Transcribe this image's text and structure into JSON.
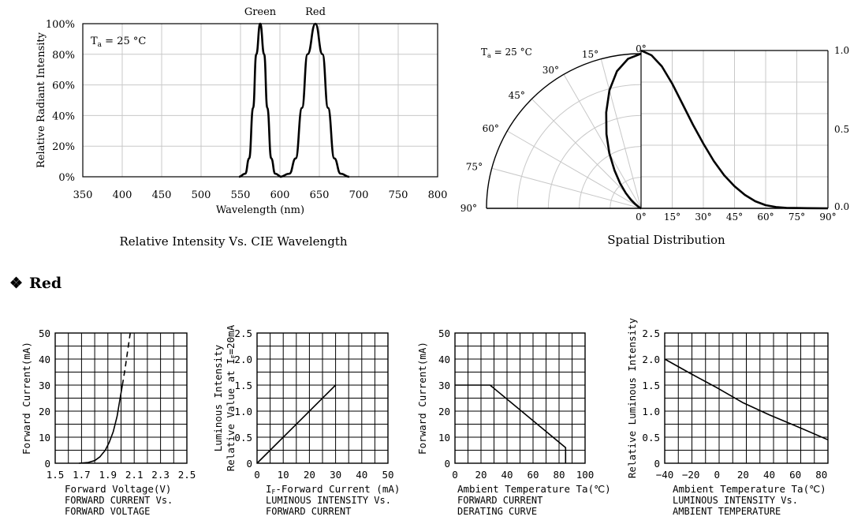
{
  "section": {
    "bullet": "❖",
    "title": "Red"
  },
  "chart_data": [
    {
      "id": "spectrum",
      "type": "line",
      "title": "Relative Intensity Vs. CIE Wavelength",
      "xlabel": "Wavelength (nm)",
      "ylabel": "Relative Radiant Intensity",
      "annotation": "Ta = 25 °C",
      "annotation_main": "T",
      "annotation_sub": "a",
      "annotation_rest": " = 25 °C",
      "xlim": [
        350,
        800
      ],
      "ylim": [
        0,
        100
      ],
      "xticks": [
        350,
        400,
        450,
        500,
        550,
        600,
        650,
        700,
        750,
        800
      ],
      "yticks": [
        0,
        20,
        40,
        60,
        80,
        100
      ],
      "ytick_labels": [
        "0%",
        "20%",
        "40%",
        "60%",
        "80%",
        "100%"
      ],
      "series": [
        {
          "name": "Green",
          "peak_x": 575,
          "points": [
            [
              548,
              0
            ],
            [
              556,
              2
            ],
            [
              561,
              12
            ],
            [
              566,
              45
            ],
            [
              570,
              80
            ],
            [
              575,
              100
            ],
            [
              580,
              80
            ],
            [
              584,
              45
            ],
            [
              589,
              12
            ],
            [
              594,
              2
            ],
            [
              602,
              0
            ]
          ]
        },
        {
          "name": "Red",
          "peak_x": 645,
          "points": [
            [
              600,
              0
            ],
            [
              612,
              2
            ],
            [
              620,
              12
            ],
            [
              628,
              45
            ],
            [
              635,
              80
            ],
            [
              645,
              100
            ],
            [
              654,
              80
            ],
            [
              661,
              45
            ],
            [
              669,
              12
            ],
            [
              677,
              2
            ],
            [
              688,
              0
            ]
          ]
        }
      ]
    },
    {
      "id": "spatial",
      "type": "line",
      "title": "Spatial Distribution",
      "annotation_main": "T",
      "annotation_sub": "a",
      "annotation_rest": " = 25 °C",
      "angle_labels": [
        "0°",
        "15°",
        "30°",
        "45°",
        "60°",
        "75°",
        "90°"
      ],
      "xticks": [
        0,
        15,
        30,
        45,
        60,
        75,
        90
      ],
      "xtick_labels": [
        "0°",
        "15°",
        "30°",
        "45°",
        "60°",
        "75°",
        "90°"
      ],
      "xlim": [
        0,
        90
      ],
      "ylim": [
        0,
        1
      ],
      "yticks": [
        0,
        0.5,
        1
      ],
      "ytick_labels": [
        "0.0",
        "0.5",
        "1.0"
      ],
      "series": [
        {
          "points": [
            [
              0,
              1.0
            ],
            [
              5,
              0.97
            ],
            [
              10,
              0.9
            ],
            [
              15,
              0.79
            ],
            [
              20,
              0.66
            ],
            [
              25,
              0.53
            ],
            [
              30,
              0.41
            ],
            [
              35,
              0.3
            ],
            [
              40,
              0.21
            ],
            [
              45,
              0.14
            ],
            [
              50,
              0.085
            ],
            [
              55,
              0.045
            ],
            [
              60,
              0.02
            ],
            [
              65,
              0.008
            ],
            [
              70,
              0.003
            ],
            [
              80,
              0.001
            ],
            [
              90,
              0
            ]
          ]
        }
      ]
    },
    {
      "id": "iv",
      "type": "line",
      "xlabel": "Forward Voltage(V)",
      "ylabel": "Forward Current(mA)",
      "caption": [
        "FORWARD CURRENT Vs.",
        "FORWARD VOLTAGE"
      ],
      "xlim": [
        1.5,
        2.5
      ],
      "ylim": [
        0,
        50
      ],
      "xticks": [
        1.5,
        1.7,
        1.9,
        2.1,
        2.3,
        2.5
      ],
      "xtick_labels": [
        "1.5",
        "1.7",
        "1.9",
        "2.1",
        "2.3",
        "2.5"
      ],
      "yticks": [
        0,
        10,
        20,
        30,
        40,
        50
      ],
      "ytick_labels": [
        "0",
        "10",
        "20",
        "30",
        "40",
        "50"
      ],
      "series": [
        {
          "style": "solid",
          "points": [
            [
              1.68,
              0
            ],
            [
              1.75,
              0.3
            ],
            [
              1.8,
              1
            ],
            [
              1.84,
              2.5
            ],
            [
              1.88,
              5
            ],
            [
              1.91,
              8
            ],
            [
              1.94,
              12
            ],
            [
              1.97,
              18
            ],
            [
              1.99,
              24
            ],
            [
              2.01,
              30
            ]
          ]
        },
        {
          "style": "dashed",
          "points": [
            [
              2.01,
              30
            ],
            [
              2.03,
              36
            ],
            [
              2.05,
              43
            ],
            [
              2.07,
              50
            ]
          ]
        }
      ]
    },
    {
      "id": "liv",
      "type": "line",
      "xlabel": "IF-Forward Current (mA)",
      "xlabel_pre": "I",
      "xlabel_sub": "F",
      "xlabel_post": "-Forward Current (mA)",
      "ylabel_lines": [
        "Luminous Intensity",
        "Relative Value at IF=20mA"
      ],
      "ylabel_line1": "Luminous Intensity",
      "ylabel_line2_pre": "Relative Value at I",
      "ylabel_line2_sub": "F",
      "ylabel_line2_post": "=20mA",
      "caption": [
        "LUMINOUS INTENSITY Vs.",
        "FORWARD CURRENT"
      ],
      "xlim": [
        0,
        50
      ],
      "ylim": [
        0,
        2.5
      ],
      "xticks": [
        0,
        10,
        20,
        30,
        40,
        50
      ],
      "xtick_labels": [
        "0",
        "10",
        "20",
        "30",
        "40",
        "50"
      ],
      "yticks": [
        0,
        0.5,
        1.0,
        1.5,
        2.0,
        2.5
      ],
      "ytick_labels": [
        "0",
        "0.5",
        "1.0",
        "1.5",
        "2.0",
        "2.5"
      ],
      "series": [
        {
          "style": "solid",
          "points": [
            [
              0,
              0
            ],
            [
              30,
              1.5
            ]
          ]
        }
      ]
    },
    {
      "id": "derating",
      "type": "line",
      "xlabel": "Ambient Temperature Ta(℃)",
      "ylabel": "Forward Current(mA)",
      "caption": [
        "FORWARD CURRENT",
        "DERATING CURVE"
      ],
      "xlim": [
        0,
        100
      ],
      "ylim": [
        0,
        50
      ],
      "xticks": [
        0,
        20,
        40,
        60,
        80,
        100
      ],
      "xtick_labels": [
        "0",
        "20",
        "40",
        "60",
        "80",
        "100"
      ],
      "yticks": [
        0,
        10,
        20,
        30,
        40,
        50
      ],
      "ytick_labels": [
        "0",
        "10",
        "20",
        "30",
        "40",
        "50"
      ],
      "series": [
        {
          "style": "solid",
          "points": [
            [
              0,
              30
            ],
            [
              27,
              30
            ],
            [
              85,
              6
            ],
            [
              85,
              0
            ]
          ]
        }
      ]
    },
    {
      "id": "lt",
      "type": "line",
      "xlabel": "Ambient Temperature Ta(℃)",
      "ylabel": "Relative Luminous Intensity",
      "caption": [
        "LUMINOUS INTENSITY Vs.",
        "AMBIENT TEMPERATURE"
      ],
      "xlim": [
        -40,
        85
      ],
      "ylim": [
        0,
        2.5
      ],
      "xticks": [
        -40,
        -20,
        0,
        20,
        40,
        60,
        80
      ],
      "xtick_labels": [
        "−40",
        "−20",
        "0",
        "20",
        "40",
        "60",
        "80"
      ],
      "yticks": [
        0,
        0.5,
        1.0,
        1.5,
        2.0,
        2.5
      ],
      "ytick_labels": [
        "0",
        "0.5",
        "1.0",
        "1.5",
        "2.0",
        "2.5"
      ],
      "series": [
        {
          "style": "solid",
          "points": [
            [
              -40,
              2.0
            ],
            [
              -20,
              1.72
            ],
            [
              0,
              1.45
            ],
            [
              20,
              1.16
            ],
            [
              40,
              0.93
            ],
            [
              60,
              0.72
            ],
            [
              85,
              0.45
            ]
          ]
        }
      ]
    }
  ]
}
